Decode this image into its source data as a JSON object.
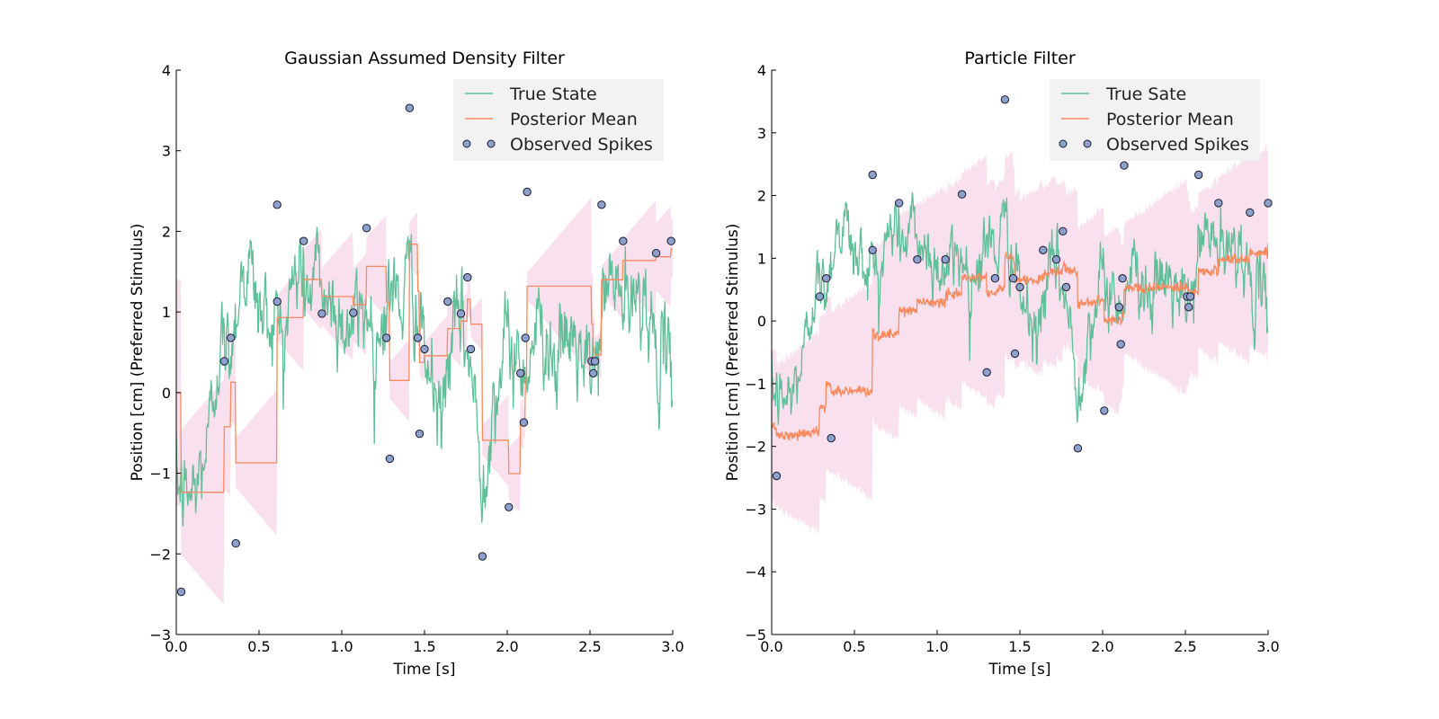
{
  "colors": {
    "true_state": "#5fbf98",
    "posterior_mean": "#f98a5e",
    "band": "#f4c6e0",
    "spike_fill": "#8da0cb",
    "spike_edge": "#1a1a2e",
    "legend_bg": "#f2f2f2"
  },
  "chart_data": [
    {
      "type": "line",
      "title": "Gaussian Assumed Density Filter",
      "xlabel": "Time [s]",
      "ylabel": "Position [cm] (Preferred Stimulus)",
      "xlim": [
        0,
        3
      ],
      "ylim": [
        -3,
        4
      ],
      "xticks": [
        "0.0",
        "0.5",
        "1.0",
        "1.5",
        "2.0",
        "2.5",
        "3.0"
      ],
      "yticks": [
        "−3",
        "−2",
        "−1",
        "0",
        "1",
        "2",
        "3",
        "4"
      ],
      "legend_position": "top-right",
      "legend": [
        "True State",
        "Posterior Mean",
        "Observed Spikes"
      ],
      "spikes": {
        "x": [
          0.03,
          0.29,
          0.33,
          0.36,
          0.61,
          0.61,
          0.77,
          0.88,
          1.07,
          1.15,
          1.27,
          1.29,
          1.41,
          1.46,
          1.47,
          1.5,
          1.64,
          1.72,
          1.76,
          1.78,
          1.85,
          2.01,
          2.08,
          2.1,
          2.11,
          2.12,
          2.51,
          2.52,
          2.53,
          2.57,
          2.7,
          2.9,
          2.99
        ],
        "y": [
          -2.47,
          0.39,
          0.68,
          -1.87,
          2.33,
          1.13,
          1.88,
          0.98,
          0.99,
          2.04,
          0.68,
          -0.82,
          3.53,
          0.68,
          -0.51,
          0.54,
          1.13,
          0.98,
          1.43,
          0.54,
          -2.03,
          -1.42,
          0.24,
          -0.37,
          0.68,
          2.49,
          0.39,
          0.24,
          0.39,
          2.33,
          1.88,
          1.73,
          1.88
        ]
      }
    },
    {
      "type": "line",
      "title": "Particle Filter",
      "xlabel": "Time [s]",
      "ylabel": "Position [cm] (Preferred Stimulus)",
      "xlim": [
        0,
        3
      ],
      "ylim": [
        -5,
        4
      ],
      "xticks": [
        "0.0",
        "0.5",
        "1.0",
        "1.5",
        "2.0",
        "2.5",
        "3.0"
      ],
      "yticks": [
        "−5",
        "−4",
        "−3",
        "−2",
        "−1",
        "0",
        "1",
        "2",
        "3",
        "4"
      ],
      "legend_position": "top-right",
      "legend": [
        "True Sate",
        "Posterior Mean",
        "Observed Spikes"
      ],
      "spikes": {
        "x": [
          0.03,
          0.29,
          0.33,
          0.36,
          0.61,
          0.61,
          0.77,
          0.88,
          1.05,
          1.15,
          1.3,
          1.35,
          1.41,
          1.46,
          1.47,
          1.5,
          1.64,
          1.72,
          1.76,
          1.78,
          1.85,
          2.01,
          2.1,
          2.11,
          2.12,
          2.13,
          2.51,
          2.52,
          2.53,
          2.58,
          2.7,
          2.89,
          3.0
        ],
        "y": [
          -2.47,
          0.39,
          0.68,
          -1.87,
          2.33,
          1.13,
          1.88,
          0.98,
          0.98,
          2.02,
          -0.82,
          0.68,
          3.53,
          0.68,
          -0.52,
          0.54,
          1.13,
          0.98,
          1.43,
          0.54,
          -2.03,
          -1.43,
          0.22,
          -0.37,
          0.68,
          2.48,
          0.39,
          0.22,
          0.39,
          2.33,
          1.88,
          1.73,
          1.88
        ]
      }
    }
  ]
}
